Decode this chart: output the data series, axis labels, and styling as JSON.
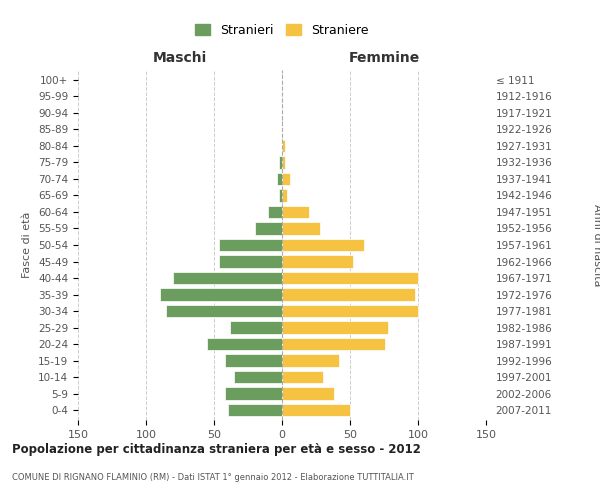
{
  "age_groups": [
    "0-4",
    "5-9",
    "10-14",
    "15-19",
    "20-24",
    "25-29",
    "30-34",
    "35-39",
    "40-44",
    "45-49",
    "50-54",
    "55-59",
    "60-64",
    "65-69",
    "70-74",
    "75-79",
    "80-84",
    "85-89",
    "90-94",
    "95-99",
    "100+"
  ],
  "birth_years": [
    "2007-2011",
    "2002-2006",
    "1997-2001",
    "1992-1996",
    "1987-1991",
    "1982-1986",
    "1977-1981",
    "1972-1976",
    "1967-1971",
    "1962-1966",
    "1957-1961",
    "1952-1956",
    "1947-1951",
    "1942-1946",
    "1937-1941",
    "1932-1936",
    "1927-1931",
    "1922-1926",
    "1917-1921",
    "1912-1916",
    "≤ 1911"
  ],
  "maschi": [
    40,
    42,
    35,
    42,
    55,
    38,
    85,
    90,
    80,
    46,
    46,
    20,
    10,
    2,
    4,
    2,
    0,
    0,
    0,
    0,
    0
  ],
  "femmine": [
    50,
    38,
    30,
    42,
    76,
    78,
    100,
    98,
    100,
    52,
    60,
    28,
    20,
    4,
    6,
    2,
    2,
    0,
    0,
    0,
    0
  ],
  "color_maschi": "#6b9e5e",
  "color_femmine": "#f5c242",
  "title": "Popolazione per cittadinanza straniera per età e sesso - 2012",
  "subtitle": "COMUNE DI RIGNANO FLAMINIO (RM) - Dati ISTAT 1° gennaio 2012 - Elaborazione TUTTITALIA.IT",
  "xlabel_left": "Maschi",
  "xlabel_right": "Femmine",
  "ylabel_left": "Fasce di età",
  "ylabel_right": "Anni di nascita",
  "xlim": 150,
  "legend_maschi": "Stranieri",
  "legend_femmine": "Straniere",
  "background_color": "#ffffff",
  "grid_color": "#cccccc"
}
